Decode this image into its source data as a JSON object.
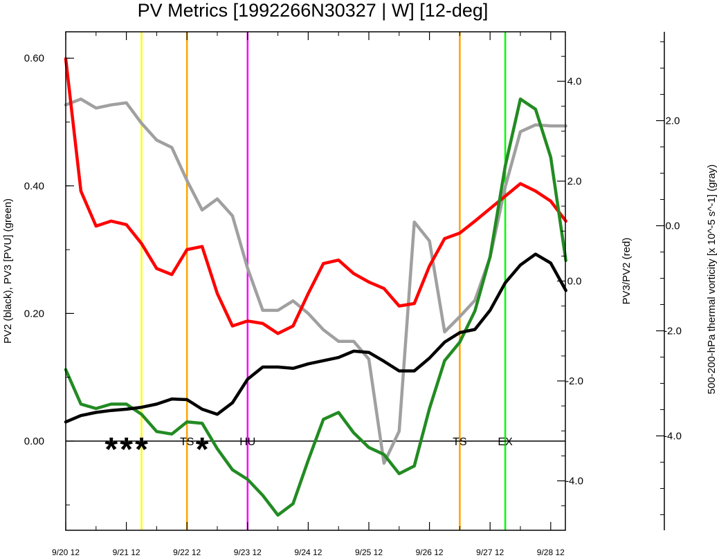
{
  "chart_data": {
    "type": "line",
    "title": "PV Metrics [1992266N30327 | W] [12-deg]",
    "ylabel_left": "PV2 (black), PV3 [PVU] (green)",
    "ylabel_right": "PV3/PV2 (red)",
    "ylabel_far_right": "500-200-hPa thermal vorticity [x 10^-5 s^-1] (gray)",
    "x_ticks": [
      {
        "x": 0,
        "label": "9/20 12"
      },
      {
        "x": 1,
        "label": "9/21 12"
      },
      {
        "x": 2,
        "label": "9/22 12"
      },
      {
        "x": 3,
        "label": "9/23 12"
      },
      {
        "x": 4,
        "label": "9/24 12"
      },
      {
        "x": 5,
        "label": "9/25 12"
      },
      {
        "x": 6,
        "label": "9/26 12"
      },
      {
        "x": 7,
        "label": "9/27 12"
      },
      {
        "x": 8,
        "label": "9/28 12"
      }
    ],
    "x_range": [
      0,
      8.25
    ],
    "left_axis": {
      "range": [
        -0.13,
        0.64
      ],
      "ticks": [
        "0.00",
        "0.20",
        "0.40",
        "0.60"
      ],
      "tick_values": [
        0,
        0.2,
        0.4,
        0.6
      ]
    },
    "right_axis": {
      "range": [
        -4.6,
        4.9
      ],
      "ticks": [
        "-4.0",
        "-2.0",
        "0.0",
        "2.0",
        "4.0"
      ],
      "tick_values": [
        -4,
        -2,
        0,
        2,
        4
      ]
    },
    "far_right_axis": {
      "range": [
        -5.5,
        5.3
      ],
      "ticks": [
        "-4.0",
        "-2.0",
        "0.0",
        "2.0"
      ],
      "tick_values": [
        -4,
        -2,
        0,
        2
      ]
    },
    "zero_line": 0,
    "vertical_lines": [
      {
        "x": 1.25,
        "color": "#ffff00"
      },
      {
        "x": 2.0,
        "color": "#ffa500"
      },
      {
        "x": 3.0,
        "color": "#ff00ff"
      },
      {
        "x": 6.5,
        "color": "#ffa500"
      },
      {
        "x": 7.25,
        "color": "#00ff00"
      }
    ],
    "markers": [
      {
        "x": 0.75,
        "symbol": "*"
      },
      {
        "x": 1.0,
        "symbol": "*"
      },
      {
        "x": 1.25,
        "symbol": "*"
      },
      {
        "x": 2.25,
        "symbol": "*"
      }
    ],
    "stage_labels": [
      {
        "x": 2.0,
        "label": "TS"
      },
      {
        "x": 3.0,
        "label": "HU"
      },
      {
        "x": 6.5,
        "label": "TS"
      },
      {
        "x": 7.25,
        "label": "EX"
      }
    ],
    "series": [
      {
        "axis": "left",
        "color": "#000000",
        "x": [
          0,
          0.25,
          0.5,
          0.75,
          1.0,
          1.25,
          1.5,
          1.75,
          2.0,
          2.25,
          2.5,
          2.75,
          3.0,
          3.25,
          3.5,
          3.75,
          4.0,
          4.25,
          4.5,
          4.75,
          5.0,
          5.25,
          5.5,
          5.75,
          6.0,
          6.25,
          6.5,
          6.75,
          7.0,
          7.25,
          7.5,
          7.75,
          8.0,
          8.25
        ],
        "values": [
          0.03,
          0.04,
          0.045,
          0.048,
          0.05,
          0.053,
          0.058,
          0.066,
          0.065,
          0.05,
          0.042,
          0.06,
          0.097,
          0.116,
          0.116,
          0.114,
          0.121,
          0.126,
          0.131,
          0.141,
          0.139,
          0.125,
          0.11,
          0.11,
          0.13,
          0.155,
          0.17,
          0.175,
          0.205,
          0.248,
          0.276,
          0.293,
          0.279,
          0.236
        ]
      },
      {
        "axis": "left",
        "color": "#228b22",
        "x": [
          0,
          0.25,
          0.5,
          0.75,
          1.0,
          1.25,
          1.5,
          1.75,
          2.0,
          2.25,
          2.5,
          2.75,
          3.0,
          3.25,
          3.5,
          3.75,
          4.0,
          4.25,
          4.5,
          4.75,
          5.0,
          5.25,
          5.5,
          5.75,
          6.0,
          6.25,
          6.5,
          6.75,
          7.0,
          7.25,
          7.5,
          7.75,
          8.0,
          8.25
        ],
        "values": [
          0.112,
          0.058,
          0.051,
          0.058,
          0.058,
          0.042,
          0.015,
          0.011,
          0.03,
          0.028,
          -0.012,
          -0.045,
          -0.06,
          -0.085,
          -0.116,
          -0.098,
          -0.03,
          0.034,
          0.045,
          0.013,
          -0.01,
          -0.021,
          -0.051,
          -0.039,
          0.051,
          0.126,
          0.155,
          0.204,
          0.289,
          0.431,
          0.536,
          0.52,
          0.445,
          0.283
        ]
      },
      {
        "axis": "right",
        "color": "#ff0000",
        "x": [
          0,
          0.25,
          0.5,
          0.75,
          1.0,
          1.25,
          1.5,
          1.75,
          2.0,
          2.25,
          2.5,
          2.75,
          3.0,
          3.25,
          3.5,
          3.75,
          4.0,
          4.25,
          4.5,
          4.75,
          5.0,
          5.25,
          5.5,
          5.75,
          6.0,
          6.25,
          6.5,
          6.75,
          7.0,
          7.25,
          7.5,
          7.75,
          8.0,
          8.25
        ],
        "values": [
          4.45,
          1.8,
          1.1,
          1.2,
          1.13,
          0.75,
          0.25,
          0.13,
          0.63,
          0.69,
          -0.25,
          -0.9,
          -0.8,
          -0.85,
          -1.05,
          -0.9,
          -0.25,
          0.35,
          0.42,
          0.15,
          -0.02,
          -0.15,
          -0.5,
          -0.45,
          0.3,
          0.85,
          0.96,
          1.2,
          1.45,
          1.7,
          1.95,
          1.8,
          1.6,
          1.2
        ]
      },
      {
        "axis": "far_right",
        "color": "#a0a0a0",
        "x": [
          0,
          0.25,
          0.5,
          0.75,
          1.0,
          1.25,
          1.5,
          1.75,
          2.0,
          2.25,
          2.5,
          2.75,
          3.0,
          3.25,
          3.5,
          3.75,
          4.0,
          4.25,
          4.5,
          4.75,
          5.0,
          5.25,
          5.5,
          5.75,
          6.0,
          6.25,
          6.5,
          6.75,
          7.0,
          7.25,
          7.5,
          7.75,
          8.0,
          8.25
        ],
        "values": [
          2.3,
          2.41,
          2.24,
          2.3,
          2.34,
          1.95,
          1.63,
          1.49,
          0.86,
          0.3,
          0.51,
          0.19,
          -0.81,
          -1.61,
          -1.61,
          -1.43,
          -1.67,
          -1.98,
          -2.2,
          -2.2,
          -2.54,
          -4.52,
          -3.91,
          0.07,
          -0.29,
          -2.02,
          -1.73,
          -1.42,
          -0.6,
          0.74,
          1.79,
          1.92,
          1.9,
          1.9
        ]
      }
    ]
  }
}
